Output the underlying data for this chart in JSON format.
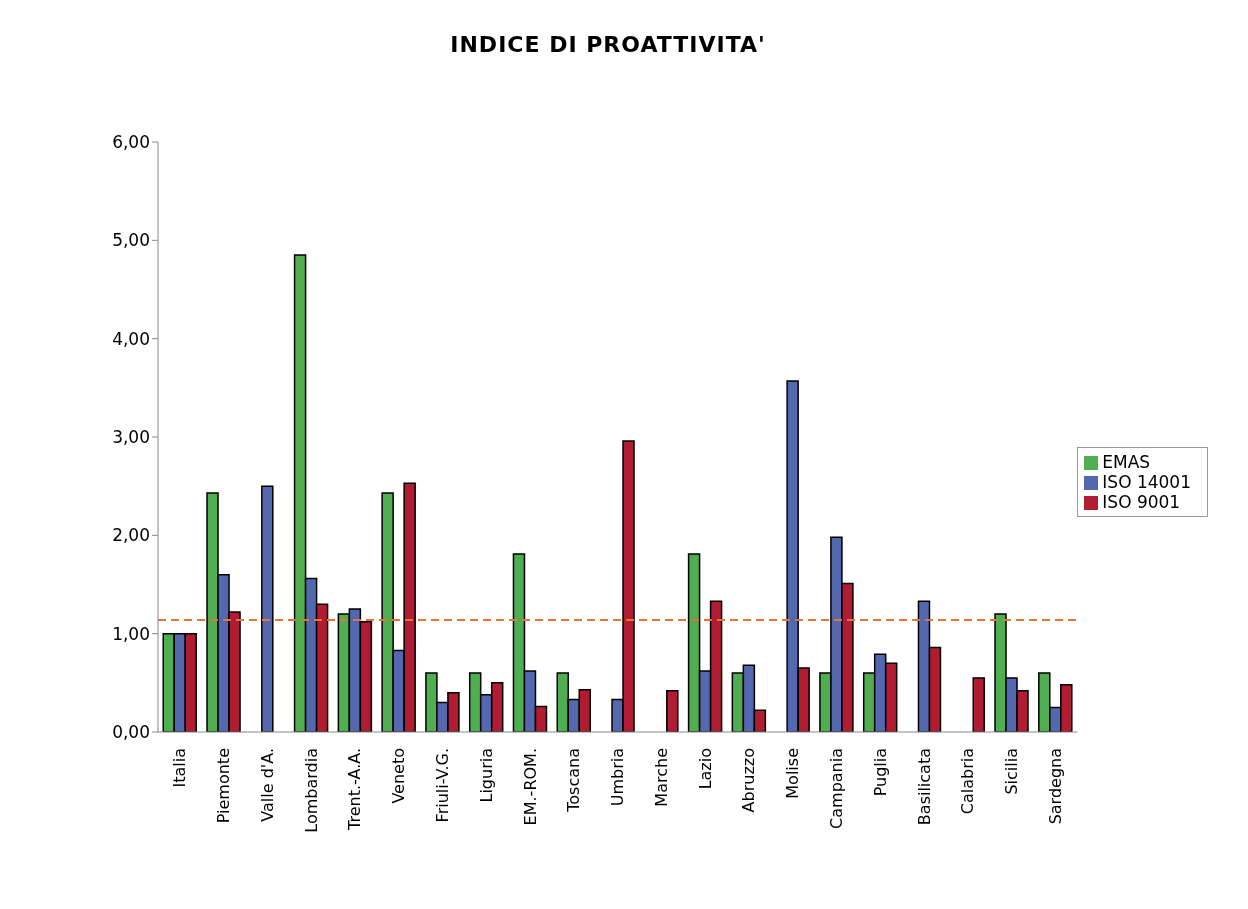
{
  "chart_data": {
    "type": "bar",
    "title": "INDICE DI PROATTIVITA'",
    "categories": [
      "Italia",
      "Piemonte",
      "Valle d'A.",
      "Lombardia",
      "Trent.-A.A.",
      "Veneto",
      "Friuli-V.G.",
      "Liguria",
      "EM.-ROM.",
      "Toscana",
      "Umbria",
      "Marche",
      "Lazio",
      "Abruzzo",
      "Molise",
      "Campania",
      "Puglia",
      "Basilicata",
      "Calabria",
      "Sicilia",
      "Sardegna"
    ],
    "series": [
      {
        "name": "EMAS",
        "color": "#4fae4f",
        "values": [
          1.0,
          2.43,
          null,
          4.85,
          1.2,
          2.43,
          0.6,
          0.6,
          1.81,
          0.6,
          null,
          null,
          1.81,
          0.6,
          null,
          0.6,
          0.6,
          null,
          null,
          1.2,
          0.6
        ]
      },
      {
        "name": "ISO 14001",
        "color": "#5468b0",
        "values": [
          1.0,
          1.6,
          2.5,
          1.56,
          1.25,
          0.83,
          0.3,
          0.38,
          0.62,
          0.33,
          0.33,
          null,
          0.62,
          0.68,
          3.57,
          1.98,
          0.79,
          1.33,
          null,
          0.55,
          0.25
        ]
      },
      {
        "name": "ISO 9001",
        "color": "#b01c32",
        "values": [
          1.0,
          1.22,
          null,
          1.3,
          1.12,
          2.53,
          0.4,
          0.5,
          0.26,
          0.43,
          2.96,
          0.42,
          1.33,
          0.22,
          0.65,
          1.51,
          0.7,
          0.86,
          0.55,
          0.42,
          0.48
        ]
      }
    ],
    "ylim": [
      0,
      6
    ],
    "yticks": [
      {
        "value": 0,
        "label": "0,00"
      },
      {
        "value": 1,
        "label": "1,00"
      },
      {
        "value": 2,
        "label": "2,00"
      },
      {
        "value": 3,
        "label": "3,00"
      },
      {
        "value": 4,
        "label": "4,00"
      },
      {
        "value": 5,
        "label": "5,00"
      },
      {
        "value": 6,
        "label": "6,00"
      }
    ],
    "ref_lines": [
      {
        "axis": "y",
        "value": 1.14,
        "color": "#e8733a",
        "line_style": "dashed"
      }
    ],
    "grid": false,
    "legend": "right"
  }
}
